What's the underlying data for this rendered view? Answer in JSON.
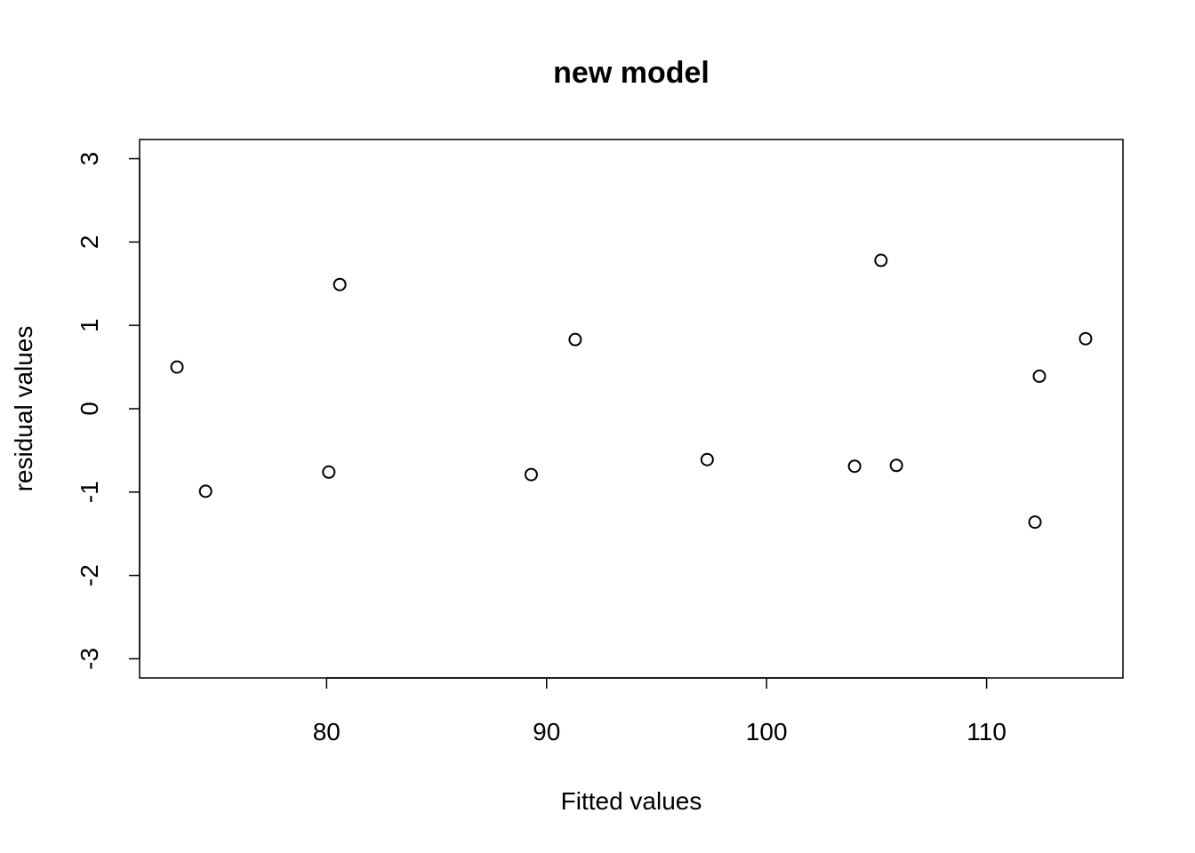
{
  "chart_data": {
    "type": "scatter",
    "title": "new model",
    "xlabel": "Fitted values",
    "ylabel": "residual values",
    "xlim": [
      71.5,
      116.2
    ],
    "ylim": [
      -3.23,
      3.23
    ],
    "x_ticks": [
      80,
      90,
      100,
      110
    ],
    "y_ticks": [
      -3,
      -2,
      -1,
      0,
      1,
      2,
      3
    ],
    "grid": false,
    "legend": "none",
    "marker": "open-circle",
    "series": [
      {
        "x": [
          73.2,
          74.5,
          80.1,
          80.6,
          89.3,
          91.3,
          97.3,
          104.0,
          105.2,
          105.9,
          112.2,
          112.4,
          114.5
        ],
        "y": [
          0.5,
          -0.99,
          -0.76,
          1.49,
          -0.79,
          0.83,
          -0.61,
          -0.69,
          1.78,
          -0.68,
          -1.36,
          0.39,
          0.84
        ]
      }
    ]
  }
}
